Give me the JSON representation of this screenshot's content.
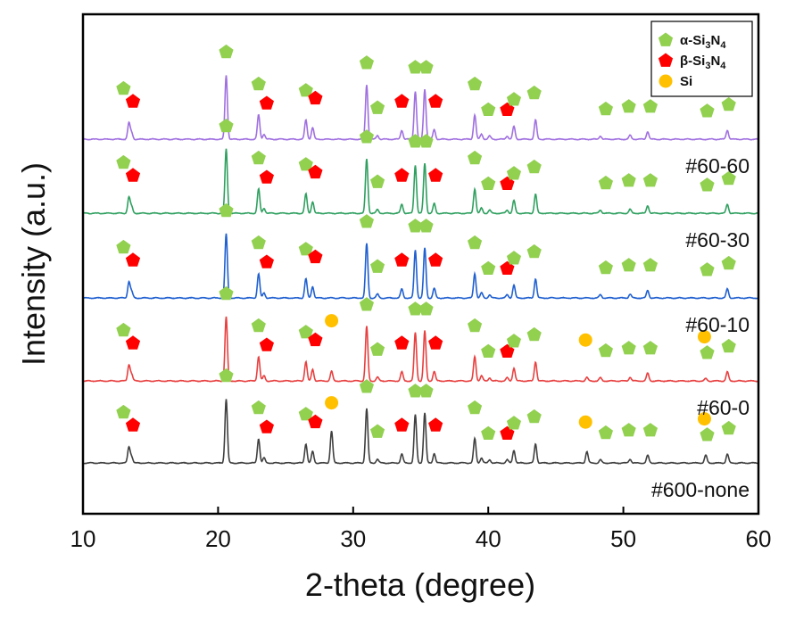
{
  "chart_data": {
    "type": "line",
    "title": "",
    "xlabel": "2-theta (degree)",
    "ylabel": "Intensity (a.u.)",
    "xlim": [
      10,
      60
    ],
    "xticks": [
      "10",
      "20",
      "30",
      "40",
      "50",
      "60"
    ],
    "grid": false,
    "legend_position": "top-right",
    "legend": [
      {
        "key": "alpha",
        "label_main": "α-Si",
        "sub1": "3",
        "mid": "N",
        "sub2": "4",
        "color": "#92d050",
        "shape": "pentagon"
      },
      {
        "key": "beta",
        "label_main": "β-Si",
        "sub1": "3",
        "mid": "N",
        "sub2": "4",
        "color": "#ff0000",
        "shape": "pentagon"
      },
      {
        "key": "si",
        "label_main": "Si",
        "sub1": "",
        "mid": "",
        "sub2": "",
        "color": "#ffc000",
        "shape": "circle"
      }
    ],
    "series": [
      {
        "name": "#600-none",
        "color": "#404040",
        "offset": 0,
        "si": true
      },
      {
        "name": "#60-0",
        "color": "#e84040",
        "offset": 1,
        "si": true
      },
      {
        "name": "#60-10",
        "color": "#2060d0",
        "offset": 2,
        "si": false
      },
      {
        "name": "#60-30",
        "color": "#30a060",
        "offset": 3,
        "si": false
      },
      {
        "name": "#60-60",
        "color": "#a070e0",
        "offset": 4,
        "si": false
      }
    ],
    "peaks": [
      {
        "pos": 13.4,
        "h": 0.25,
        "phase": "alpha"
      },
      {
        "pos": 13.6,
        "h": 0.1,
        "phase": "beta"
      },
      {
        "pos": 20.6,
        "h": 1.0,
        "phase": "alpha"
      },
      {
        "pos": 23.0,
        "h": 0.38,
        "phase": "alpha"
      },
      {
        "pos": 23.4,
        "h": 0.08,
        "phase": "beta"
      },
      {
        "pos": 26.5,
        "h": 0.3,
        "phase": "alpha"
      },
      {
        "pos": 27.0,
        "h": 0.18,
        "phase": "beta"
      },
      {
        "pos": 28.4,
        "h": 0.5,
        "phase": "si"
      },
      {
        "pos": 31.0,
        "h": 0.85,
        "phase": "alpha"
      },
      {
        "pos": 31.8,
        "h": 0.06,
        "phase": "alpha"
      },
      {
        "pos": 33.6,
        "h": 0.14,
        "phase": "beta"
      },
      {
        "pos": 34.6,
        "h": 0.75,
        "phase": "alpha"
      },
      {
        "pos": 35.3,
        "h": 0.78,
        "phase": "alpha"
      },
      {
        "pos": 36.0,
        "h": 0.15,
        "phase": "beta"
      },
      {
        "pos": 39.0,
        "h": 0.38,
        "phase": "alpha"
      },
      {
        "pos": 39.5,
        "h": 0.08,
        "phase": "alpha"
      },
      {
        "pos": 40.1,
        "h": 0.05,
        "phase": "alpha"
      },
      {
        "pos": 41.4,
        "h": 0.05,
        "phase": "beta"
      },
      {
        "pos": 41.9,
        "h": 0.2,
        "phase": "alpha"
      },
      {
        "pos": 43.5,
        "h": 0.3,
        "phase": "alpha"
      },
      {
        "pos": 47.3,
        "h": 0.18,
        "phase": "si"
      },
      {
        "pos": 48.3,
        "h": 0.05,
        "phase": "alpha"
      },
      {
        "pos": 50.5,
        "h": 0.06,
        "phase": "alpha"
      },
      {
        "pos": 51.8,
        "h": 0.12,
        "phase": "alpha"
      },
      {
        "pos": 56.1,
        "h": 0.12,
        "phase": "si"
      },
      {
        "pos": 57.7,
        "h": 0.14,
        "phase": "alpha"
      }
    ],
    "markers": [
      {
        "pos": 13.0,
        "phase": "alpha",
        "lvl": 0.55
      },
      {
        "pos": 13.7,
        "phase": "beta",
        "lvl": 0.35
      },
      {
        "pos": 20.6,
        "phase": "alpha",
        "lvl": 1.12
      },
      {
        "pos": 23.0,
        "phase": "alpha",
        "lvl": 0.62
      },
      {
        "pos": 23.6,
        "phase": "beta",
        "lvl": 0.32
      },
      {
        "pos": 26.5,
        "phase": "alpha",
        "lvl": 0.52
      },
      {
        "pos": 27.2,
        "phase": "beta",
        "lvl": 0.4
      },
      {
        "pos": 28.4,
        "phase": "si",
        "lvl": 0.7
      },
      {
        "pos": 31.0,
        "phase": "alpha",
        "lvl": 0.95
      },
      {
        "pos": 31.8,
        "phase": "alpha",
        "lvl": 0.25
      },
      {
        "pos": 33.6,
        "phase": "beta",
        "lvl": 0.35
      },
      {
        "pos": 34.6,
        "phase": "alpha",
        "lvl": 0.88
      },
      {
        "pos": 35.4,
        "phase": "alpha",
        "lvl": 0.88
      },
      {
        "pos": 36.1,
        "phase": "beta",
        "lvl": 0.35
      },
      {
        "pos": 39.0,
        "phase": "alpha",
        "lvl": 0.62
      },
      {
        "pos": 40.0,
        "phase": "alpha",
        "lvl": 0.22
      },
      {
        "pos": 41.4,
        "phase": "beta",
        "lvl": 0.22
      },
      {
        "pos": 41.9,
        "phase": "alpha",
        "lvl": 0.38
      },
      {
        "pos": 43.4,
        "phase": "alpha",
        "lvl": 0.48
      },
      {
        "pos": 47.2,
        "phase": "si",
        "lvl": 0.4
      },
      {
        "pos": 48.7,
        "phase": "alpha",
        "lvl": 0.23
      },
      {
        "pos": 50.4,
        "phase": "alpha",
        "lvl": 0.27
      },
      {
        "pos": 52.0,
        "phase": "alpha",
        "lvl": 0.27
      },
      {
        "pos": 56.0,
        "phase": "si",
        "lvl": 0.45
      },
      {
        "pos": 56.2,
        "phase": "alpha",
        "lvl": 0.2
      },
      {
        "pos": 57.8,
        "phase": "alpha",
        "lvl": 0.3
      }
    ]
  }
}
